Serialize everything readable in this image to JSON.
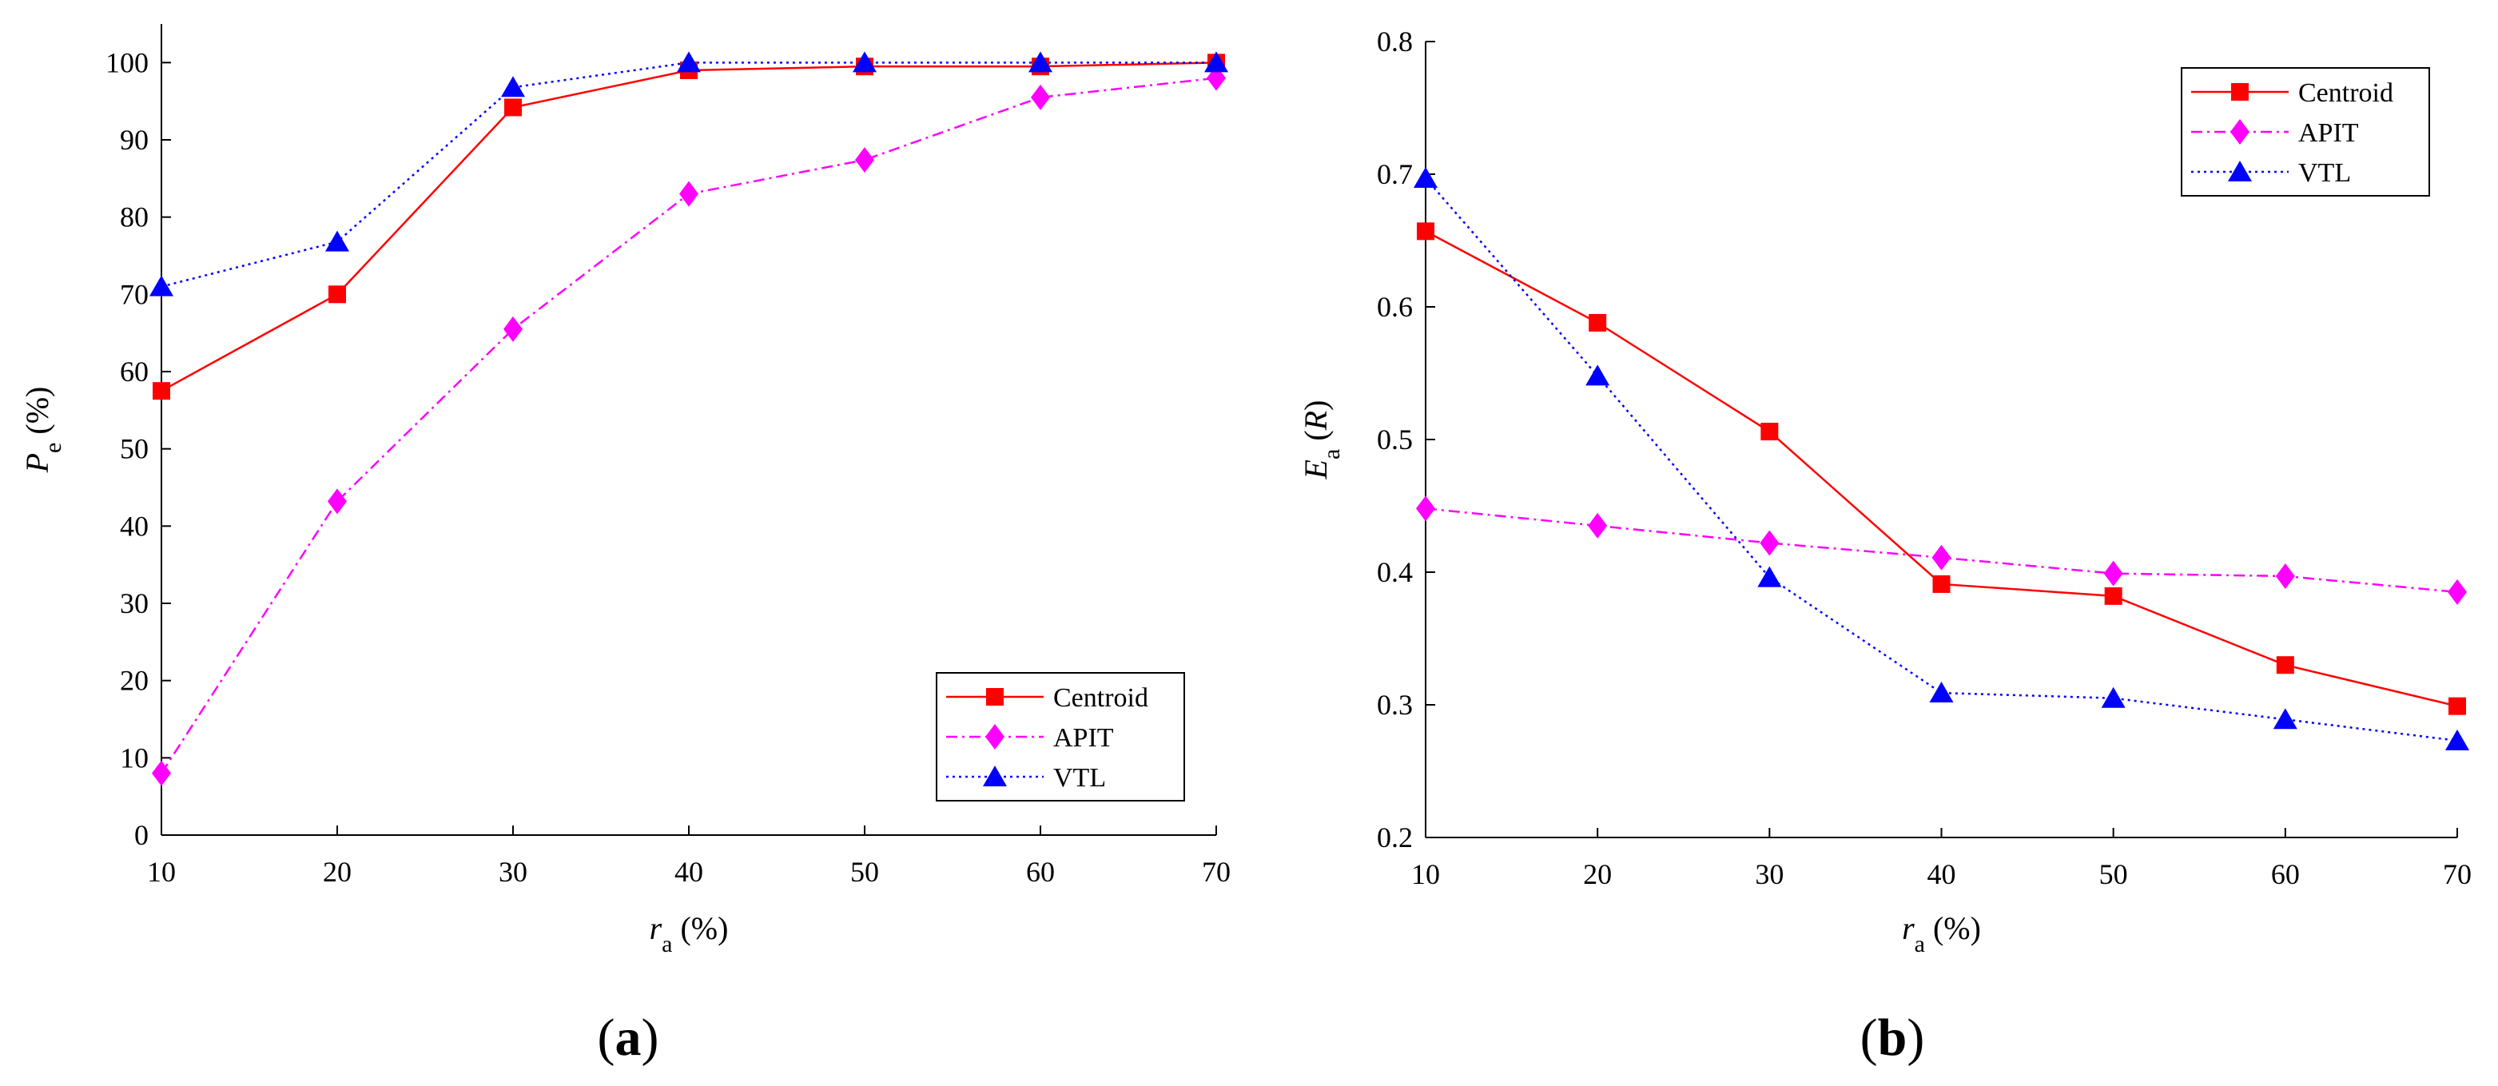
{
  "figure": {
    "panel_labels": [
      "(a)",
      "(b)"
    ]
  },
  "chart_data": [
    {
      "type": "line",
      "panel": "a",
      "title": "",
      "x": [
        10,
        20,
        30,
        40,
        50,
        60,
        70
      ],
      "xlabel": {
        "var": "r",
        "sub": "a",
        "unit": "(%)"
      },
      "ylabel": {
        "var": "P",
        "sub": "e",
        "unit": "(%)"
      },
      "xlim": [
        10,
        70
      ],
      "ylim": [
        0,
        105
      ],
      "xticks": [
        10,
        20,
        30,
        40,
        50,
        60,
        70
      ],
      "yticks": [
        0,
        10,
        20,
        30,
        40,
        50,
        60,
        70,
        80,
        90,
        100
      ],
      "grid": false,
      "legend_position": "bottom-right",
      "series": [
        {
          "name": "Centroid",
          "color": "#ff0000",
          "marker": "square",
          "dash": "solid",
          "values": [
            57.5,
            70,
            94.2,
            99,
            99.5,
            99.5,
            100
          ]
        },
        {
          "name": "APIT",
          "color": "#ff00ff",
          "marker": "diamond",
          "dash": "dashdot",
          "values": [
            8,
            43.2,
            65.5,
            83,
            87.4,
            95.5,
            98
          ]
        },
        {
          "name": "VTL",
          "color": "#0000ff",
          "marker": "triangle",
          "dash": "dotted",
          "values": [
            71,
            76.8,
            96.8,
            100,
            100,
            100,
            100
          ]
        }
      ]
    },
    {
      "type": "line",
      "panel": "b",
      "title": "",
      "x": [
        10,
        20,
        30,
        40,
        50,
        60,
        70
      ],
      "xlabel": {
        "var": "r",
        "sub": "a",
        "unit": "(%)"
      },
      "ylabel": {
        "var": "E",
        "sub": "a",
        "unit": "(R)"
      },
      "xlim": [
        10,
        70
      ],
      "ylim": [
        0.2,
        0.8
      ],
      "xticks": [
        10,
        20,
        30,
        40,
        50,
        60,
        70
      ],
      "yticks": [
        0.2,
        0.3,
        0.4,
        0.5,
        0.6,
        0.7,
        0.8
      ],
      "grid": false,
      "legend_position": "top-right",
      "series": [
        {
          "name": "Centroid",
          "color": "#ff0000",
          "marker": "square",
          "dash": "solid",
          "values": [
            0.657,
            0.588,
            0.506,
            0.391,
            0.382,
            0.33,
            0.299
          ]
        },
        {
          "name": "APIT",
          "color": "#ff00ff",
          "marker": "diamond",
          "dash": "dashdot",
          "values": [
            0.448,
            0.435,
            0.422,
            0.411,
            0.399,
            0.397,
            0.385
          ]
        },
        {
          "name": "VTL",
          "color": "#0000ff",
          "marker": "triangle",
          "dash": "dotted",
          "values": [
            0.697,
            0.548,
            0.396,
            0.309,
            0.305,
            0.289,
            0.273
          ]
        }
      ]
    }
  ]
}
